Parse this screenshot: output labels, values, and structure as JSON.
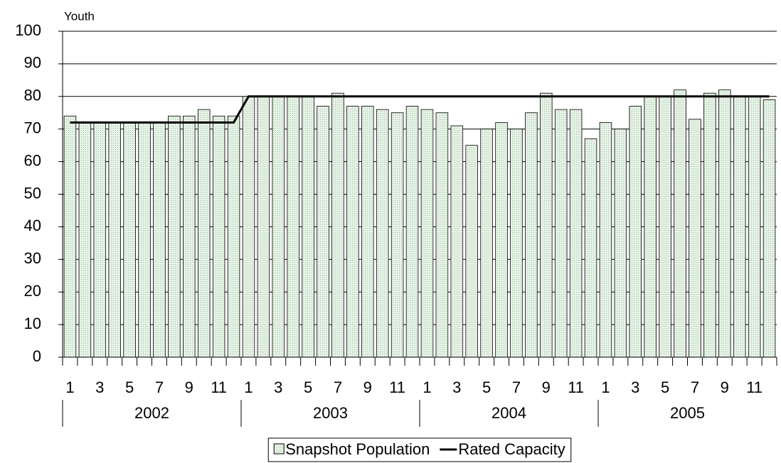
{
  "chart_data": {
    "type": "bar",
    "y_label": "Youth",
    "categories": [
      "1",
      null,
      "3",
      null,
      "5",
      null,
      "7",
      null,
      "9",
      null,
      "11",
      null,
      "1",
      null,
      "3",
      null,
      "5",
      null,
      "7",
      null,
      "9",
      null,
      "11",
      null,
      "1",
      null,
      "3",
      null,
      "5",
      null,
      "7",
      null,
      "9",
      null,
      "11",
      null,
      "1",
      null,
      "3",
      null,
      "5",
      null,
      "7",
      null,
      "9",
      null,
      "11",
      null
    ],
    "groups": [
      "2002",
      "2003",
      "2004",
      "2005"
    ],
    "series": [
      {
        "name": "Snapshot Population",
        "type": "bar",
        "color": "#d6ead6",
        "values": [
          74,
          72,
          72,
          72,
          72,
          72,
          72,
          74,
          74,
          76,
          74,
          74,
          80,
          80,
          80,
          80,
          80,
          77,
          81,
          77,
          77,
          76,
          75,
          77,
          76,
          75,
          71,
          65,
          70,
          72,
          70,
          75,
          81,
          76,
          76,
          67,
          72,
          70,
          77,
          80,
          80,
          82,
          73,
          81,
          82,
          80,
          80,
          79
        ]
      },
      {
        "name": "Rated Capacity",
        "type": "line",
        "color": "#000000",
        "values": [
          72,
          72,
          72,
          72,
          72,
          72,
          72,
          72,
          72,
          72,
          72,
          72,
          80,
          80,
          80,
          80,
          80,
          80,
          80,
          80,
          80,
          80,
          80,
          80,
          80,
          80,
          80,
          80,
          80,
          80,
          80,
          80,
          80,
          80,
          80,
          80,
          80,
          80,
          80,
          80,
          80,
          80,
          80,
          80,
          80,
          80,
          80,
          80
        ]
      }
    ],
    "ylim": [
      0,
      100
    ],
    "yticks": [
      0,
      10,
      20,
      30,
      40,
      50,
      60,
      70,
      80,
      90,
      100
    ],
    "grid": true,
    "legend": "bottom"
  }
}
